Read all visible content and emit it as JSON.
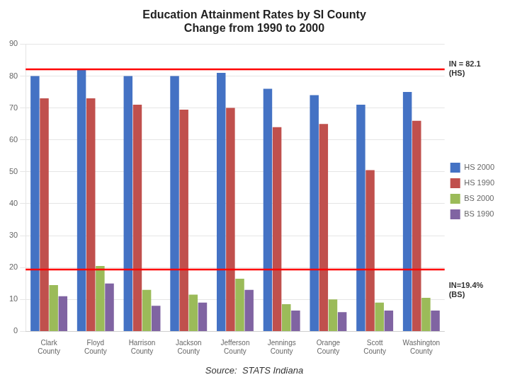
{
  "chart_data": {
    "type": "bar",
    "title": "Education Attainment Rates by SI County",
    "subtitle": "Change from 1990 to 2000",
    "source": "Source:  STATS Indiana",
    "categories": [
      "Clark County",
      "Floyd County",
      "Harrison County",
      "Jackson County",
      "Jefferson\nCounty",
      "Jennings County",
      "Orange County",
      "Scott County",
      "Washington\nCounty"
    ],
    "series": [
      {
        "name": "HS 2000",
        "color": "#4472C4",
        "values": [
          80,
          82,
          80,
          80,
          81,
          76,
          74,
          71,
          75
        ]
      },
      {
        "name": "HS 1990",
        "color": "#C0504D",
        "values": [
          73,
          73,
          71,
          69.5,
          70,
          64,
          65,
          50.5,
          66
        ]
      },
      {
        "name": "BS 2000",
        "color": "#9BBB59",
        "values": [
          14.5,
          20.5,
          13,
          11.5,
          16.5,
          8.5,
          10,
          9,
          10.5
        ]
      },
      {
        "name": "BS 1990",
        "color": "#8064A2",
        "values": [
          11,
          15,
          8,
          9,
          13,
          6.5,
          6,
          6.5,
          6.5
        ]
      }
    ],
    "annotations": [
      {
        "type": "hline",
        "y": 82.1,
        "text": "IN = 82.1\n(HS)",
        "color": "#FF0000"
      },
      {
        "type": "hline",
        "y": 19.4,
        "text": "IN=19.4%\n(BS)",
        "color": "#FF0000"
      }
    ],
    "ylim": [
      0,
      90
    ],
    "yticks": [
      0,
      10,
      20,
      30,
      40,
      50,
      60,
      70,
      80,
      90
    ],
    "grid": true,
    "legend": "right"
  }
}
